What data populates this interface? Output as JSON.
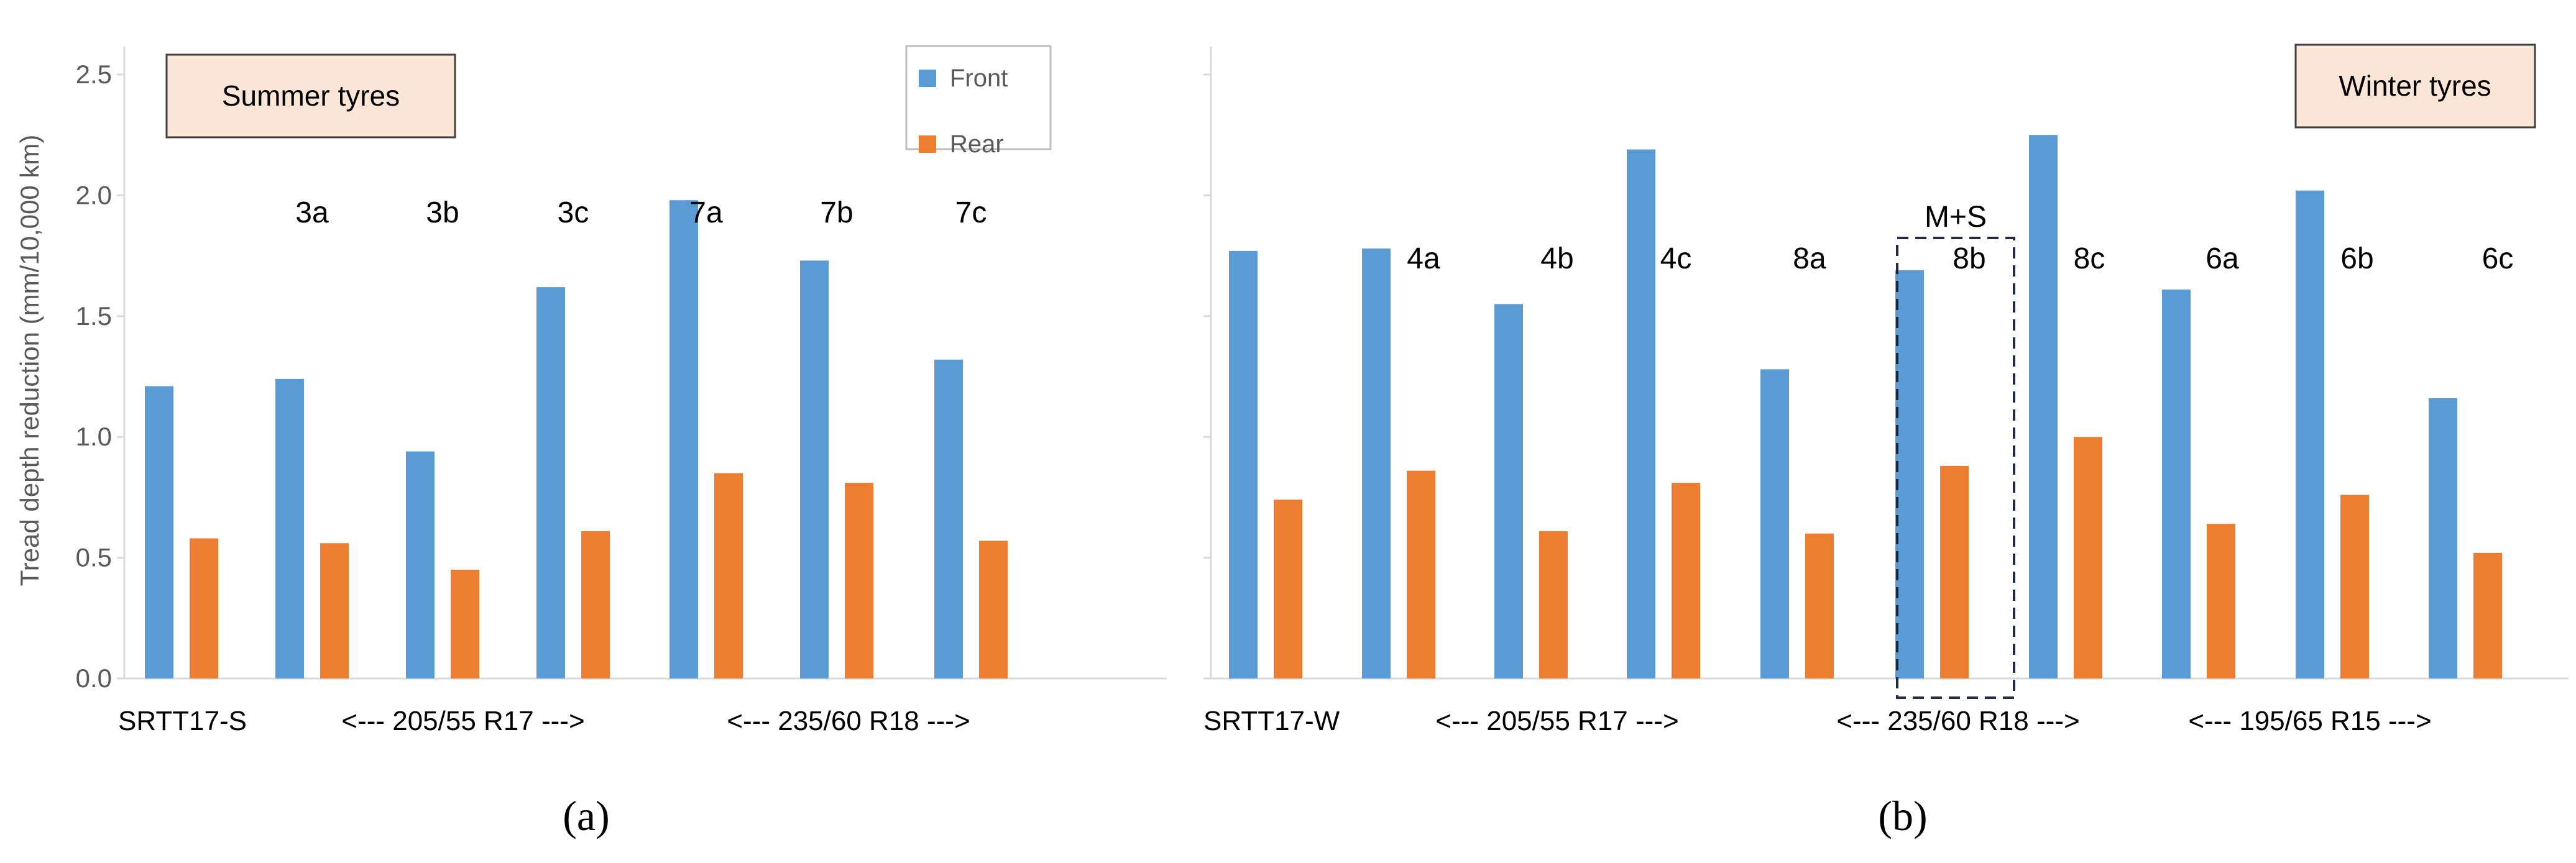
{
  "chart_data": [
    {
      "type": "bar",
      "panel_label": "(a)",
      "box_label": "Summer tyres",
      "ylabel": "Tread depth reduction (mm/10,000 km)",
      "ylim": [
        0,
        2.5
      ],
      "yticks": [
        "0.0",
        "0.5",
        "1.0",
        "1.5",
        "2.0",
        "2.5"
      ],
      "legend": {
        "placement": "top-right",
        "entries": [
          "Front",
          "Rear"
        ]
      },
      "group_labels": [
        "",
        "3a",
        "3b",
        "3c",
        "7a",
        "7b",
        "7c"
      ],
      "category_labels": [
        "SRTT17-S",
        "<--- 205/55 R17 --->",
        "<--- 235/60 R18 --->"
      ],
      "series": [
        {
          "name": "Front",
          "color": "#5B9BD5",
          "values": [
            1.21,
            1.24,
            0.94,
            1.62,
            1.98,
            1.73,
            1.32
          ]
        },
        {
          "name": "Rear",
          "color": "#ED7D31",
          "values": [
            0.58,
            0.56,
            0.45,
            0.61,
            0.85,
            0.81,
            0.57
          ]
        }
      ]
    },
    {
      "type": "bar",
      "panel_label": "(b)",
      "box_label": "Winter tyres",
      "ylim": [
        0,
        2.5
      ],
      "group_labels": [
        "",
        "4a",
        "4b",
        "4c",
        "8a",
        "8b",
        "8c",
        "6a",
        "6b",
        "6c"
      ],
      "highlight": {
        "label": "M+S",
        "group": "8b"
      },
      "category_labels": [
        "SRTT17-W",
        "<--- 205/55 R17 --->",
        "<--- 235/60 R18 --->",
        "<--- 195/65 R15 --->"
      ],
      "series": [
        {
          "name": "Front",
          "color": "#5B9BD5",
          "values": [
            1.77,
            1.78,
            1.55,
            2.19,
            1.28,
            1.69,
            2.25,
            1.61,
            2.02,
            1.16
          ]
        },
        {
          "name": "Rear",
          "color": "#ED7D31",
          "values": [
            0.74,
            0.86,
            0.61,
            0.81,
            0.6,
            0.88,
            1.0,
            0.64,
            0.76,
            0.52
          ]
        }
      ]
    }
  ]
}
